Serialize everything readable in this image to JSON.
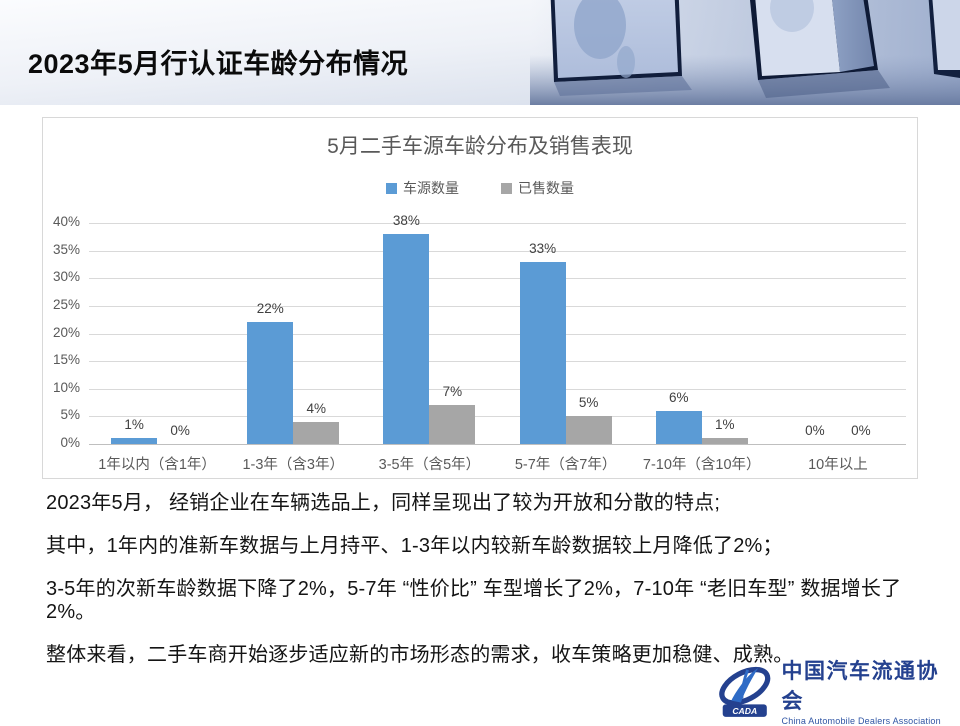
{
  "header": {
    "title": "2023年5月行认证车龄分布情况"
  },
  "chart_data": {
    "type": "bar",
    "title": "5月二手车源车龄分布及销售表现",
    "categories": [
      "1年以内（含1年）",
      "1-3年（含3年）",
      "3-5年（含5年）",
      "5-7年（含7年）",
      "7-10年（含10年）",
      "10年以上"
    ],
    "series": [
      {
        "name": "车源数量",
        "color": "#5B9BD5",
        "values": [
          1,
          22,
          38,
          33,
          6,
          0
        ]
      },
      {
        "name": "已售数量",
        "color": "#A6A6A6",
        "values": [
          0,
          4,
          7,
          5,
          1,
          0
        ]
      }
    ],
    "ylim": [
      0,
      40
    ],
    "ytick_step": 5,
    "ytick_suffix": "%",
    "data_label_suffix": "%",
    "grid": true,
    "legend_position": "top",
    "grid_color": "#D9D9D9",
    "axis_color": "#BFBFBF"
  },
  "body_text": {
    "paragraphs": [
      "2023年5月，  经销企业在车辆选品上，同样呈现出了较为开放和分散的特点;",
      "其中，1年内的准新车数据与上月持平、1-3年以内较新车龄数据较上月降低了2%；",
      "3-5年的次新车龄数据下降了2%，5-7年 “性价比” 车型增长了2%，7-10年 “老旧车型” 数据增长了2%。",
      "整体来看，二手车商开始逐步适应新的市场形态的需求，收车策略更加稳健、成熟。"
    ]
  },
  "logo": {
    "badge_text": "CADA",
    "name_cn": "中国汽车流通协会",
    "name_en": "China Automobile Dealers Association"
  }
}
